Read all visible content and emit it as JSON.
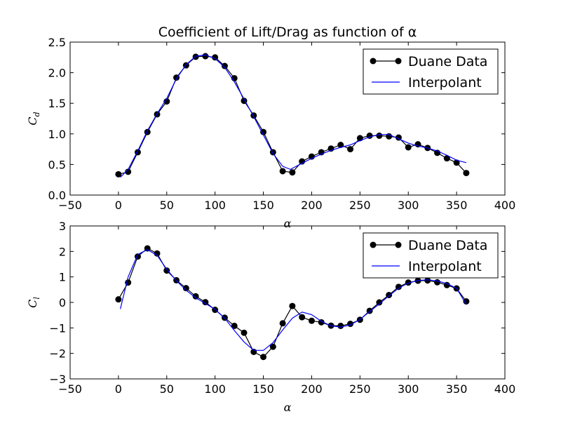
{
  "chart_data": [
    {
      "type": "line",
      "title": "Coefficient of Lift/Drag as function of α",
      "xlabel": "α",
      "ylabel": "C_d",
      "xlim": [
        -50,
        400
      ],
      "ylim": [
        0,
        2.5
      ],
      "xticks": [
        "−50",
        "0",
        "50",
        "100",
        "150",
        "200",
        "250",
        "300",
        "350",
        "400"
      ],
      "yticks": [
        "0.0",
        "0.5",
        "1.0",
        "1.5",
        "2.0",
        "2.5"
      ],
      "grid": false,
      "legend": "top-right",
      "series": [
        {
          "name": "Duane Data",
          "style": "line-markers",
          "color": "#000000",
          "x": [
            0,
            10,
            20,
            30,
            40,
            50,
            60,
            70,
            80,
            90,
            100,
            110,
            120,
            130,
            140,
            150,
            160,
            170,
            180,
            190,
            200,
            210,
            220,
            230,
            240,
            250,
            260,
            270,
            280,
            290,
            300,
            310,
            320,
            330,
            340,
            350,
            360
          ],
          "y": [
            0.34,
            0.38,
            0.7,
            1.03,
            1.32,
            1.53,
            1.92,
            2.12,
            2.26,
            2.27,
            2.25,
            2.11,
            1.91,
            1.54,
            1.3,
            1.03,
            0.7,
            0.39,
            0.37,
            0.55,
            0.63,
            0.7,
            0.76,
            0.82,
            0.75,
            0.93,
            0.97,
            0.97,
            0.96,
            0.94,
            0.78,
            0.83,
            0.77,
            0.69,
            0.6,
            0.53,
            0.36
          ]
        },
        {
          "name": "Interpolant",
          "style": "line",
          "color": "#0000ff",
          "x": [
            2,
            10,
            20,
            30,
            40,
            50,
            60,
            70,
            80,
            90,
            100,
            110,
            120,
            130,
            140,
            150,
            160,
            170,
            178,
            190,
            200,
            210,
            220,
            230,
            240,
            250,
            260,
            270,
            280,
            290,
            300,
            310,
            320,
            330,
            340,
            350,
            360
          ],
          "y": [
            0.29,
            0.42,
            0.72,
            1.05,
            1.33,
            1.58,
            1.9,
            2.13,
            2.27,
            2.29,
            2.23,
            2.09,
            1.85,
            1.57,
            1.28,
            0.98,
            0.68,
            0.47,
            0.42,
            0.52,
            0.6,
            0.67,
            0.73,
            0.78,
            0.82,
            0.89,
            0.95,
            0.99,
            0.99,
            0.92,
            0.85,
            0.8,
            0.77,
            0.72,
            0.65,
            0.57,
            0.53
          ]
        }
      ]
    },
    {
      "type": "line",
      "title": "",
      "xlabel": "α",
      "ylabel": "C_l",
      "xlim": [
        -50,
        400
      ],
      "ylim": [
        -3,
        3
      ],
      "xticks": [
        "−50",
        "0",
        "50",
        "100",
        "150",
        "200",
        "250",
        "300",
        "350",
        "400"
      ],
      "yticks": [
        "−3",
        "−2",
        "−1",
        "0",
        "1",
        "2",
        "3"
      ],
      "grid": false,
      "legend": "top-right",
      "series": [
        {
          "name": "Duane Data",
          "style": "line-markers",
          "color": "#000000",
          "x": [
            0,
            10,
            20,
            30,
            40,
            50,
            60,
            70,
            80,
            90,
            100,
            110,
            120,
            130,
            140,
            150,
            160,
            170,
            180,
            190,
            200,
            210,
            220,
            230,
            240,
            250,
            260,
            270,
            280,
            290,
            300,
            310,
            320,
            330,
            340,
            350,
            360
          ],
          "y": [
            0.12,
            0.78,
            1.8,
            2.12,
            1.92,
            1.25,
            0.87,
            0.56,
            0.24,
            0.01,
            -0.29,
            -0.6,
            -0.92,
            -1.19,
            -1.94,
            -2.14,
            -1.74,
            -0.82,
            -0.14,
            -0.58,
            -0.72,
            -0.78,
            -0.91,
            -0.92,
            -0.84,
            -0.68,
            -0.33,
            0.0,
            0.29,
            0.61,
            0.78,
            0.85,
            0.86,
            0.79,
            0.68,
            0.55,
            0.04
          ]
        },
        {
          "name": "Interpolant",
          "style": "line",
          "color": "#0000ff",
          "x": [
            2,
            10,
            20,
            30,
            40,
            50,
            60,
            70,
            80,
            90,
            100,
            110,
            120,
            130,
            140,
            150,
            160,
            170,
            180,
            190,
            200,
            210,
            220,
            230,
            240,
            250,
            260,
            270,
            280,
            290,
            300,
            310,
            320,
            330,
            340,
            350,
            360
          ],
          "y": [
            -0.26,
            1.0,
            1.88,
            2.07,
            1.85,
            1.3,
            0.85,
            0.48,
            0.18,
            -0.04,
            -0.27,
            -0.62,
            -1.1,
            -1.55,
            -1.88,
            -1.88,
            -1.58,
            -1.08,
            -0.62,
            -0.38,
            -0.48,
            -0.74,
            -0.92,
            -0.97,
            -0.88,
            -0.67,
            -0.36,
            -0.06,
            0.26,
            0.56,
            0.76,
            0.86,
            0.89,
            0.84,
            0.74,
            0.55,
            -0.08
          ]
        }
      ]
    }
  ]
}
